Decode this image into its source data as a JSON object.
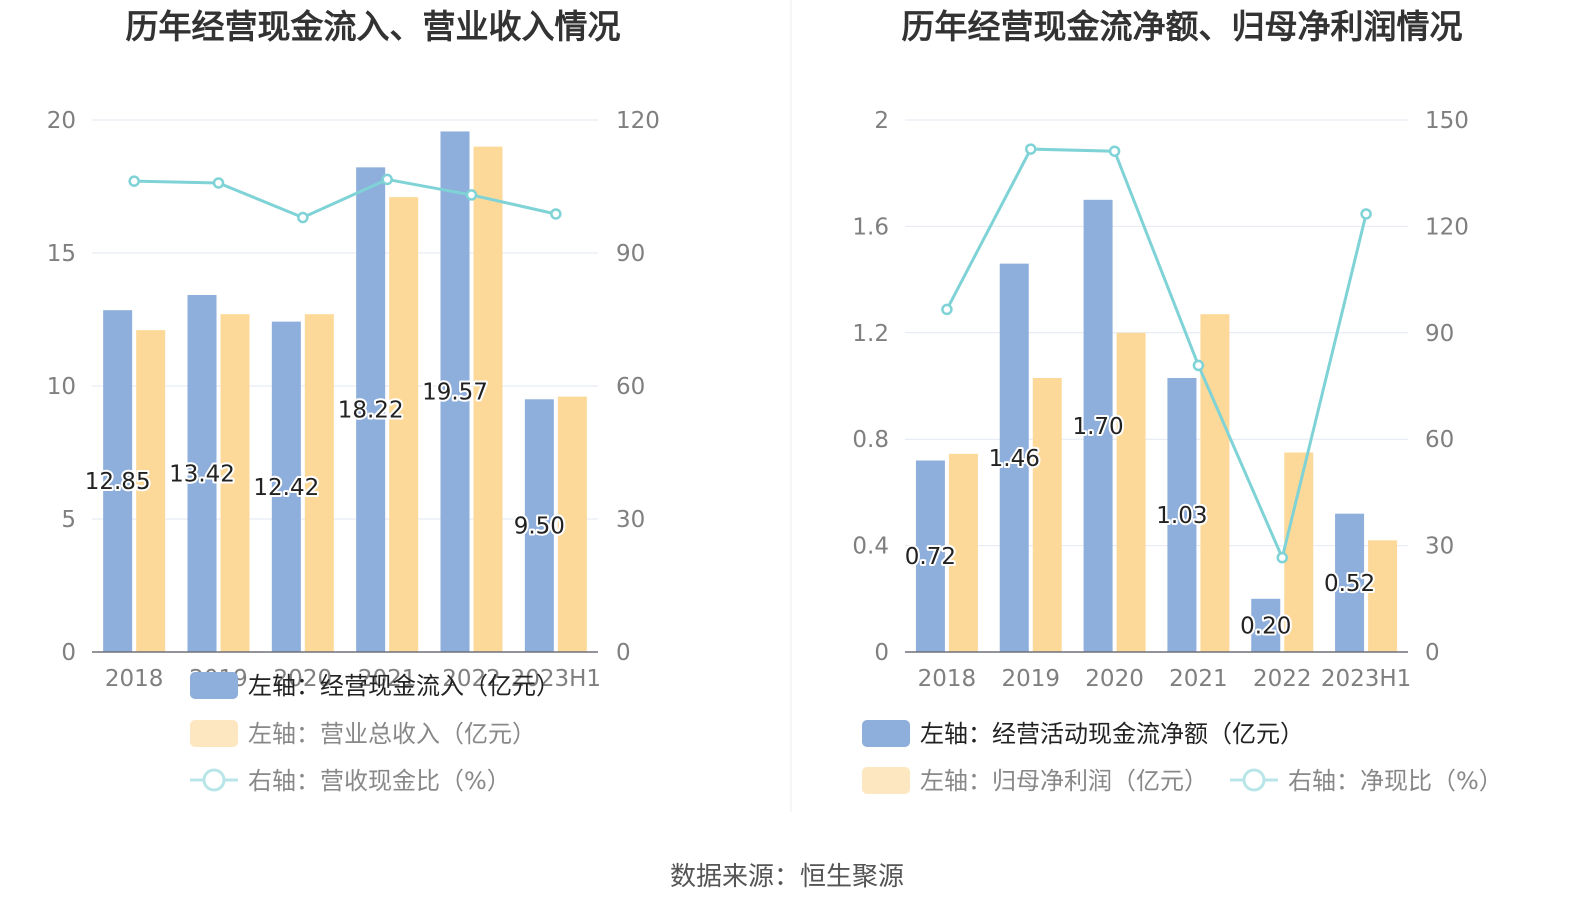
{
  "colors": {
    "bar_blue": "#8eaedc",
    "bar_orange": "#fdd999",
    "line": "#7fd3d6",
    "axis_text": "#7f7f7f",
    "grid": "#e2e8f2",
    "title": "#333333"
  },
  "chart_data": [
    {
      "type": "bar",
      "title": "历年经营现金流入、营业收入情况",
      "categories": [
        "2018",
        "2019",
        "2020",
        "2021",
        "2022",
        "2023H1"
      ],
      "left_axis": {
        "ylim": [
          0,
          20
        ],
        "ticks": [
          "0",
          "5",
          "10",
          "15",
          "20"
        ]
      },
      "right_axis": {
        "ylim": [
          0,
          120
        ],
        "ticks": [
          "0",
          "30",
          "60",
          "90",
          "120"
        ]
      },
      "series": [
        {
          "name": "左轴：经营现金流入（亿元）",
          "type": "bar",
          "axis": "left",
          "values": [
            12.85,
            13.42,
            12.42,
            18.22,
            19.57,
            9.5
          ],
          "labels": [
            "12.85",
            "13.42",
            "12.42",
            "18.22",
            "19.57",
            "9.50"
          ]
        },
        {
          "name": "左轴：营业总收入（亿元）",
          "type": "bar",
          "axis": "left",
          "values": [
            12.1,
            12.7,
            12.7,
            17.1,
            19.0,
            9.6
          ]
        },
        {
          "name": "右轴：营收现金比（%）",
          "type": "line",
          "axis": "right",
          "values": [
            106.2,
            105.8,
            98.0,
            106.6,
            103.1,
            98.8
          ]
        }
      ],
      "grid": true,
      "legend_position": "bottom"
    },
    {
      "type": "bar",
      "title": "历年经营现金流净额、归母净利润情况",
      "categories": [
        "2018",
        "2019",
        "2020",
        "2021",
        "2022",
        "2023H1"
      ],
      "left_axis": {
        "ylim": [
          0,
          2
        ],
        "ticks": [
          "0",
          "0.4",
          "0.8",
          "1.2",
          "1.6",
          "2"
        ]
      },
      "right_axis": {
        "ylim": [
          0,
          150
        ],
        "ticks": [
          "0",
          "30",
          "60",
          "90",
          "120",
          "150"
        ]
      },
      "series": [
        {
          "name": "左轴：经营活动现金流净额（亿元）",
          "type": "bar",
          "axis": "left",
          "values": [
            0.72,
            1.46,
            1.7,
            1.03,
            0.2,
            0.52
          ],
          "labels": [
            "0.72",
            "1.46",
            "1.70",
            "1.03",
            "0.20",
            "0.52"
          ]
        },
        {
          "name": "左轴：归母净利润（亿元）",
          "type": "bar",
          "axis": "left",
          "values": [
            0.745,
            1.03,
            1.2,
            1.27,
            0.75,
            0.42
          ]
        },
        {
          "name": "右轴：净现比（%）",
          "type": "line",
          "axis": "right",
          "values": [
            96.6,
            141.8,
            141.2,
            80.8,
            26.6,
            123.5
          ]
        }
      ],
      "grid": true,
      "legend_position": "bottom"
    }
  ],
  "footer": {
    "source": "数据来源：恒生聚源"
  }
}
